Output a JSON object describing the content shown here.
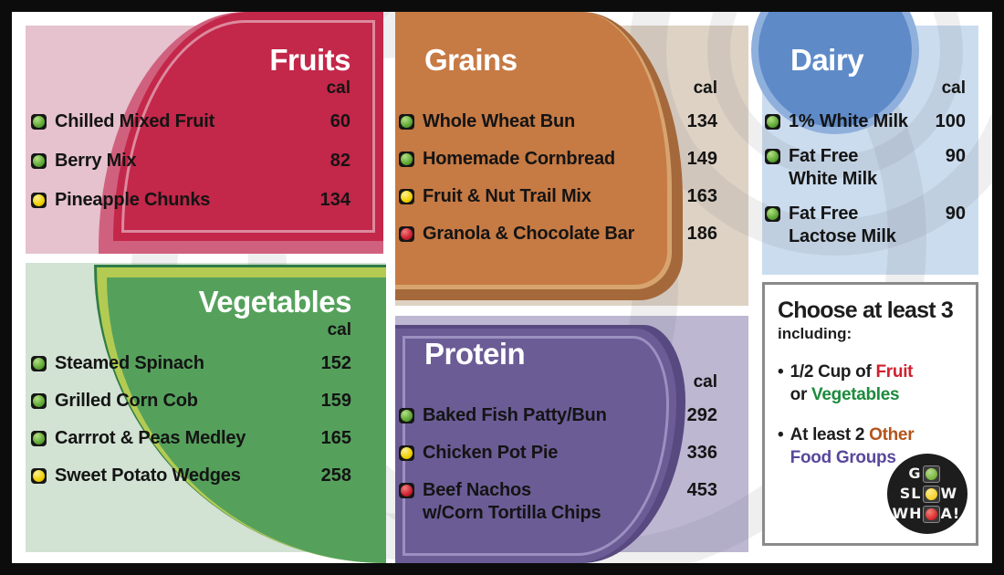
{
  "poster_title": "Go Slow Whoa cafeteria menu",
  "colors": {
    "fruits_fill": "#c32749",
    "fruits_bg": "#e5c2cd",
    "grains_fill": "#c67a44",
    "grains_bg": "#ded2c4",
    "dairy_fill": "#5e8bc8",
    "dairy_bg": "#cbdcee",
    "vegetables_fill": "#55a15c",
    "vegetables_bg": "#d2e2d3",
    "protein_fill": "#6b5c96",
    "protein_bg": "#bdb7d2",
    "signal_green": "#5fa836",
    "signal_yellow": "#f0d000",
    "signal_red": "#cf2130",
    "accent_fruit": "#d0202f",
    "accent_vegetables": "#1d8a3d",
    "accent_other": "#b3541b",
    "accent_food_groups": "#59489b"
  },
  "sections": {
    "fruits": {
      "title": "Fruits",
      "unit": "cal",
      "items": [
        {
          "signal": "green",
          "name": "Chilled Mixed Fruit",
          "cal": "60"
        },
        {
          "signal": "green",
          "name": "Berry Mix",
          "cal": "82"
        },
        {
          "signal": "yellow",
          "name": "Pineapple Chunks",
          "cal": "134"
        }
      ]
    },
    "grains": {
      "title": "Grains",
      "unit": "cal",
      "items": [
        {
          "signal": "green",
          "name": "Whole Wheat Bun",
          "cal": "134"
        },
        {
          "signal": "green",
          "name": "Homemade Cornbread",
          "cal": "149"
        },
        {
          "signal": "yellow",
          "name": "Fruit & Nut Trail Mix",
          "cal": "163"
        },
        {
          "signal": "red",
          "name": "Granola & Chocolate Bar",
          "cal": "186"
        }
      ]
    },
    "dairy": {
      "title": "Dairy",
      "unit": "cal",
      "items": [
        {
          "signal": "green",
          "name": "1% White Milk",
          "cal": "100"
        },
        {
          "signal": "green",
          "name": "Fat Free\nWhite Milk",
          "cal": "90"
        },
        {
          "signal": "green",
          "name": "Fat Free\nLactose Milk",
          "cal": "90"
        }
      ]
    },
    "vegetables": {
      "title": "Vegetables",
      "unit": "cal",
      "items": [
        {
          "signal": "green",
          "name": "Steamed Spinach",
          "cal": "152"
        },
        {
          "signal": "green",
          "name": "Grilled Corn Cob",
          "cal": "159"
        },
        {
          "signal": "green",
          "name": "Carrrot & Peas Medley",
          "cal": "165"
        },
        {
          "signal": "yellow",
          "name": "Sweet Potato Wedges",
          "cal": "258"
        }
      ]
    },
    "protein": {
      "title": "Protein",
      "unit": "cal",
      "items": [
        {
          "signal": "green",
          "name": "Baked Fish Patty/Bun",
          "cal": "292"
        },
        {
          "signal": "yellow",
          "name": "Chicken Pot Pie",
          "cal": "336"
        },
        {
          "signal": "red",
          "name": "Beef Nachos\nw/Corn Tortilla Chips",
          "cal": "453"
        }
      ]
    }
  },
  "info_box": {
    "title": "Choose at least 3",
    "subtitle": "including:",
    "bullet_marker": "•",
    "bullets": [
      {
        "line1_prefix": "1/2 Cup of ",
        "line1_accent": "Fruit",
        "line2_prefix": "or ",
        "line2_accent": "Vegetables"
      },
      {
        "line1_prefix": "At least 2 ",
        "line1_accent": "Other",
        "line2_prefix": "",
        "line2_accent": "Food Groups"
      }
    ]
  },
  "logo": {
    "rows": [
      {
        "left": "G",
        "light": "green",
        "right": ""
      },
      {
        "left": "SL",
        "light": "yellow",
        "right": "W"
      },
      {
        "left": "WH",
        "light": "red",
        "right": "A!"
      }
    ]
  }
}
